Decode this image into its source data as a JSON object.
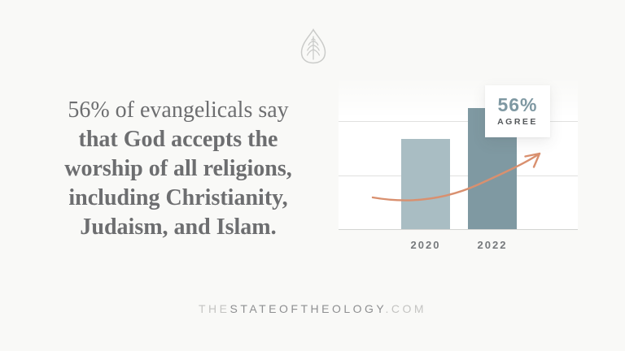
{
  "page": {
    "background": "#f9f9f7"
  },
  "logo": {
    "icon": "ligonier-leaf-logo",
    "color": "#cacbc9"
  },
  "headline": {
    "line1": "56% of evangelicals say",
    "line2": "that God accepts the",
    "line3": "worship of all religions,",
    "line4": "including Christianity,",
    "line5": "Judaism, and Islam."
  },
  "chart_data": {
    "type": "bar",
    "categories": [
      "2020",
      "2022"
    ],
    "values": [
      42,
      56
    ],
    "units": "% agree",
    "title": "",
    "xlabel": "",
    "ylabel": "",
    "ylim": [
      0,
      70
    ],
    "gridlines_at": [
      25,
      50
    ],
    "legend": "none",
    "bar_colors": [
      "#a9bdc3",
      "#7f99a2"
    ],
    "arrow_color": "#d9906f",
    "gridline_color": "#e0e1df",
    "callout": {
      "value": "56%",
      "label": "AGREE"
    },
    "annotation": "hand-drawn upward trend arrow from 2020 bar toward 2022 callout"
  },
  "footer": {
    "the": "THE",
    "main": "STATEOFTHEOLOGY",
    "com": ".COM"
  }
}
